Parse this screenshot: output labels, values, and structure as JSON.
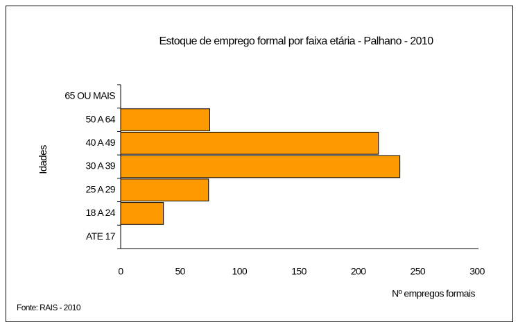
{
  "chart_data": {
    "type": "bar",
    "orientation": "horizontal",
    "title": "Estoque de emprego formal por faixa etária - Palhano - 2010",
    "y_label": "Idades",
    "x_label": "Nº empregos formais",
    "source": "Fonte: RAIS - 2010",
    "categories": [
      "65 OU MAIS",
      "50 A 64",
      "40 A 49",
      "30 A 39",
      "25 A 29",
      "18 A 24",
      "ATE 17"
    ],
    "values": [
      0,
      75,
      217,
      235,
      74,
      36,
      0
    ],
    "color": "#ff9900",
    "xlim": [
      0,
      300
    ],
    "xticks": [
      0,
      50,
      100,
      150,
      200,
      250,
      300
    ]
  }
}
